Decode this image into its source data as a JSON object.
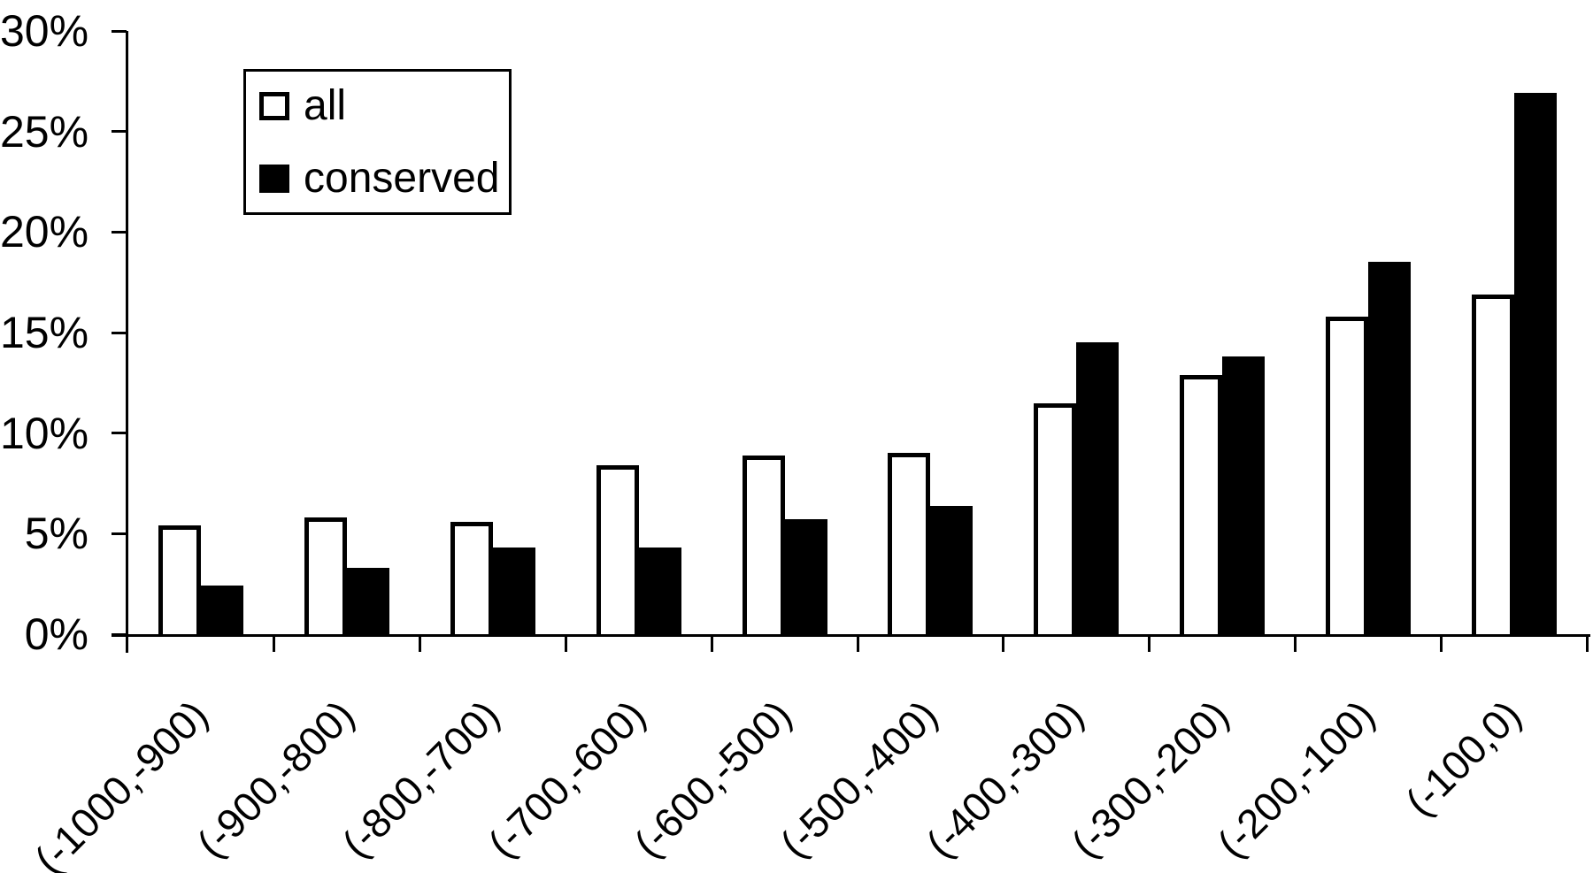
{
  "chart_data": {
    "type": "bar",
    "categories": [
      "(-1000,-900)",
      "(-900,-800)",
      "(-800,-700)",
      "(-700,-600)",
      "(-600,-500)",
      "(-500,-400)",
      "(-400,-300)",
      "(-300,-200)",
      "(-200,-100)",
      "(-100,0)"
    ],
    "series": [
      {
        "name": "all",
        "fill": "#ffffff",
        "outline": "#000000",
        "values": [
          5.4,
          5.8,
          5.6,
          8.4,
          8.9,
          9.0,
          11.5,
          12.9,
          15.8,
          16.9
        ]
      },
      {
        "name": "conserved",
        "fill": "#000000",
        "outline": "#000000",
        "values": [
          2.4,
          3.3,
          4.3,
          4.3,
          5.7,
          6.4,
          14.5,
          13.8,
          18.5,
          26.9
        ]
      }
    ],
    "ylim": [
      0,
      30
    ],
    "ytick_interval": 5,
    "ytick_labels": [
      "0%",
      "5%",
      "10%",
      "15%",
      "20%",
      "25%",
      "30%"
    ],
    "grid": false,
    "legend_position": "top-left",
    "x_labels_rotation_deg": -45
  },
  "colors": {
    "background": "#ffffff",
    "axis": "#000000",
    "text": "#000000",
    "bar_all_fill": "#ffffff",
    "bar_conserved_fill": "#000000"
  }
}
